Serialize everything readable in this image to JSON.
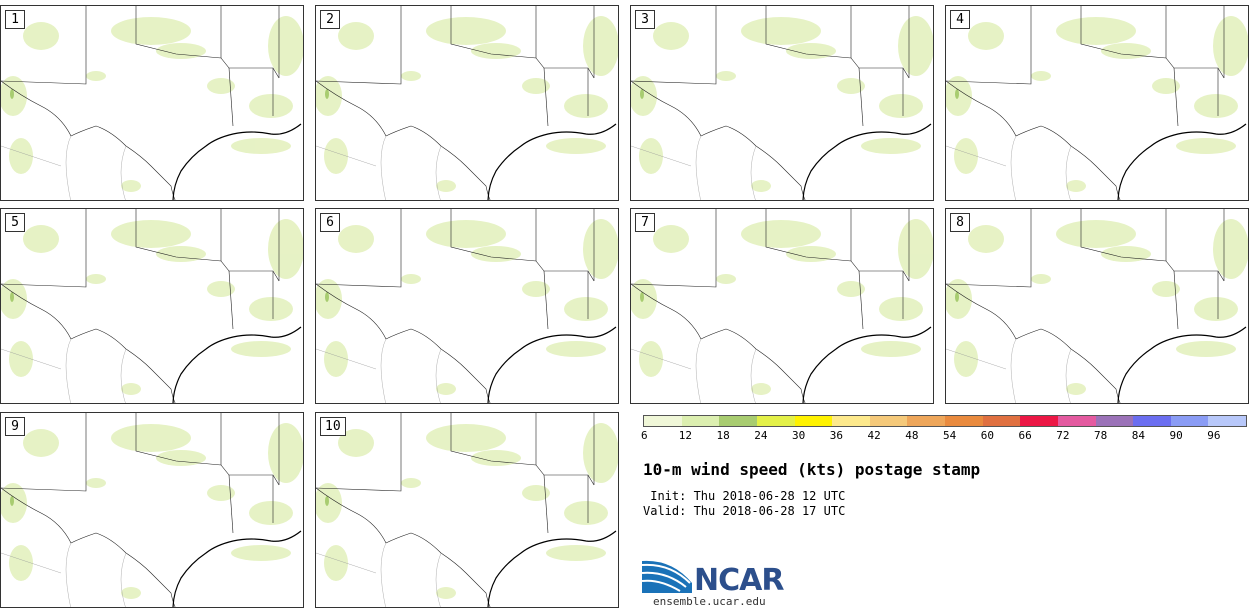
{
  "panels": [
    {
      "label": "1"
    },
    {
      "label": "2"
    },
    {
      "label": "3"
    },
    {
      "label": "4"
    },
    {
      "label": "5"
    },
    {
      "label": "6"
    },
    {
      "label": "7"
    },
    {
      "label": "8"
    },
    {
      "label": "9"
    },
    {
      "label": "10"
    }
  ],
  "legend": {
    "ticks": [
      "6",
      "12",
      "18",
      "24",
      "30",
      "36",
      "42",
      "48",
      "54",
      "60",
      "66",
      "72",
      "78",
      "84",
      "90",
      "96"
    ],
    "colors": [
      "#f0f7d8",
      "#dcefb0",
      "#a8cc70",
      "#e3f048",
      "#fff200",
      "#fde98c",
      "#f5c97a",
      "#eea65a",
      "#e98a3e",
      "#e07040",
      "#ec1745",
      "#e45aa0",
      "#9b72b8",
      "#6b6ef0",
      "#8a9cf5",
      "#b8c8fa"
    ]
  },
  "title": "10-m wind speed (kts) postage stamp",
  "info": {
    "init": " Init: Thu 2018-06-28 12 UTC",
    "valid": "Valid: Thu 2018-06-28 17 UTC"
  },
  "logo": {
    "text": "NCAR",
    "url": "ensemble.ucar.edu"
  }
}
